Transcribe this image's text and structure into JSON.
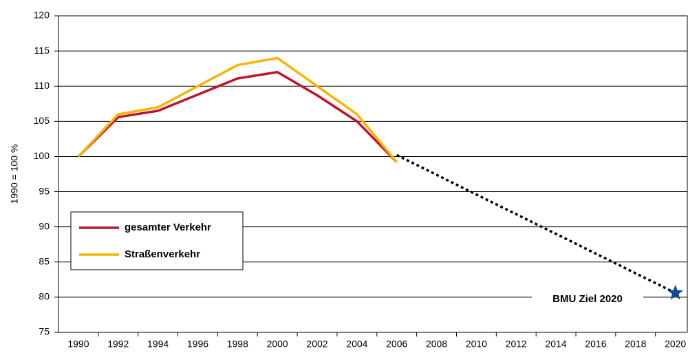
{
  "chart_data": {
    "type": "line",
    "y_label": "1990 = 100 %",
    "x": [
      1990,
      1992,
      1994,
      1996,
      1998,
      2000,
      2002,
      2004,
      2006
    ],
    "series": [
      {
        "name": "gesamter Verkehr",
        "color": "#c0122b",
        "values": [
          100,
          105.6,
          106.5,
          108.8,
          111.1,
          112,
          108.7,
          105,
          99.2
        ]
      },
      {
        "name": "Straßenverkehr",
        "color": "#f7b500",
        "values": [
          100,
          106,
          107,
          110,
          113,
          114,
          110,
          106,
          99.2
        ]
      }
    ],
    "target": {
      "label": "BMU Ziel 2020",
      "x": [
        2006,
        2020
      ],
      "values": [
        100.2,
        80.6
      ],
      "color": "#0b4a96"
    },
    "xlim": [
      1989,
      2020.6
    ],
    "xticks": [
      1990,
      1992,
      1994,
      1996,
      1998,
      2000,
      2002,
      2004,
      2006,
      2008,
      2010,
      2012,
      2014,
      2016,
      2018,
      2020
    ],
    "ylim": [
      75,
      120
    ],
    "yticks": [
      75,
      80,
      85,
      90,
      95,
      100,
      105,
      110,
      115,
      120
    ],
    "grid": true,
    "legend": "lower-left"
  }
}
